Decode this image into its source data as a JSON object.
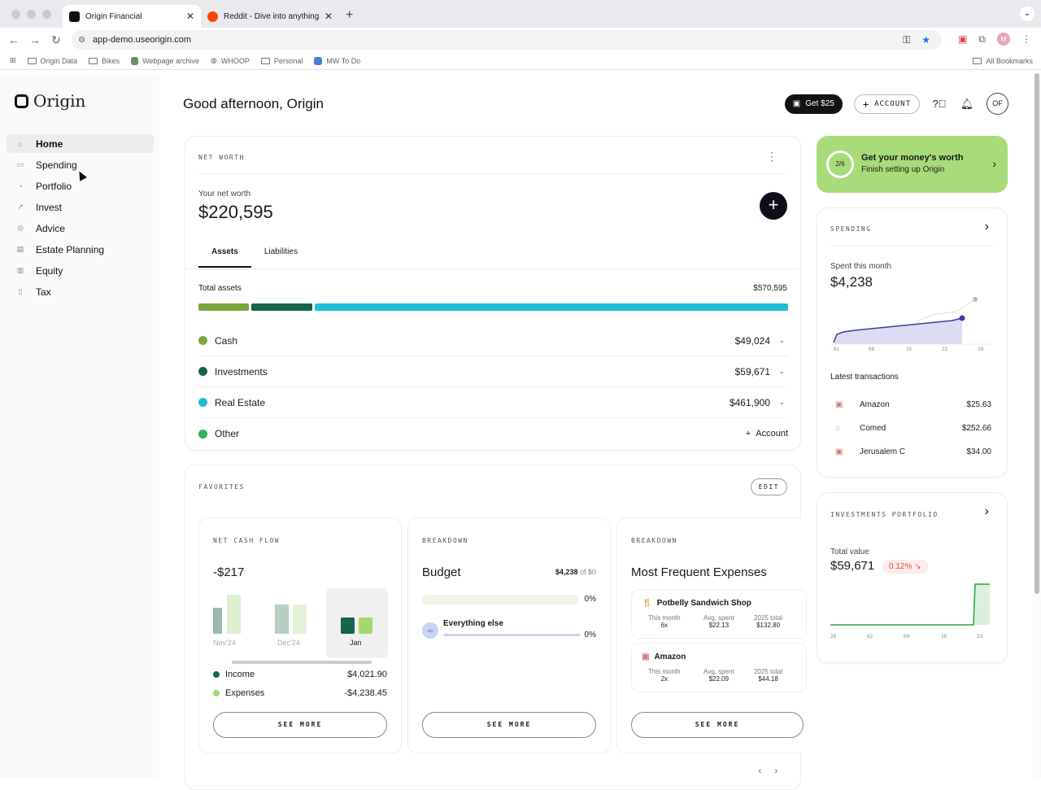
{
  "browser": {
    "tabs": [
      {
        "title": "Origin Financial"
      },
      {
        "title": "Reddit - Dive into anything"
      }
    ],
    "url": "app-demo.useorigin.com",
    "bookmarks": [
      "Origin Data",
      "Bikes",
      "Webpage archive",
      "WHOOP",
      "Personal",
      "MW To Do"
    ],
    "all_bookmarks": "All Bookmarks",
    "profile_initial": "M"
  },
  "app": {
    "logo": "Origin",
    "nav": [
      {
        "label": "Home",
        "icon": "home-icon"
      },
      {
        "label": "Spending",
        "icon": "card-icon"
      },
      {
        "label": "Portfolio",
        "icon": "pie-icon"
      },
      {
        "label": "Invest",
        "icon": "trend-icon"
      },
      {
        "label": "Advice",
        "icon": "target-icon"
      },
      {
        "label": "Estate Planning",
        "icon": "building-icon"
      },
      {
        "label": "Equity",
        "icon": "bars-icon"
      },
      {
        "label": "Tax",
        "icon": "doc-icon"
      }
    ],
    "greeting": "Good afternoon, Origin",
    "get_btn": "Get $25",
    "account_btn": "ACCOUNT",
    "avatar": "OF"
  },
  "net_worth": {
    "label": "NET WORTH",
    "subtitle": "Your net worth",
    "value": "$220,595",
    "tabs": [
      "Assets",
      "Liabilities"
    ],
    "total_label": "Total assets",
    "total_value": "$570,595",
    "rows": [
      {
        "name": "Cash",
        "value": "$49,024",
        "color": "#7aa83c"
      },
      {
        "name": "Investments",
        "value": "$59,671",
        "color": "#13654e"
      },
      {
        "name": "Real Estate",
        "value": "$461,900",
        "color": "#1fbfd1"
      },
      {
        "name": "Other",
        "value": "",
        "color": "#2cb25a",
        "action": "Account"
      }
    ]
  },
  "favorites": {
    "label": "FAVORITES",
    "edit": "EDIT",
    "cash_flow": {
      "label": "NET CASH FLOW",
      "value": "-$217",
      "months": [
        "Nov'24",
        "Dec'24",
        "Jan"
      ],
      "income_label": "Income",
      "income": "$4,021.90",
      "expenses_label": "Expenses",
      "expenses": "-$4,238.45",
      "see_more": "SEE MORE"
    },
    "budget": {
      "label": "BREAKDOWN",
      "title": "Budget",
      "spent": "$4,238",
      "of": "of $0",
      "pct1": "0%",
      "else_label": "Everything else",
      "pct2": "0%",
      "see_more": "SEE MORE"
    },
    "frequent": {
      "label": "BREAKDOWN",
      "title": "Most Frequent Expenses",
      "items": [
        {
          "name": "Potbelly Sandwich Shop",
          "this_month_label": "This month",
          "this_month": "6x",
          "avg_label": "Avg. spent",
          "avg": "$22.13",
          "total_label": "2025 total",
          "total": "$132.80"
        },
        {
          "name": "Amazon",
          "this_month_label": "This month",
          "this_month": "2x",
          "avg_label": "Avg. spent",
          "avg": "$22.09",
          "total_label": "2025 total",
          "total": "$44.18"
        }
      ],
      "see_more": "SEE MORE"
    }
  },
  "promo": {
    "progress": "2/6",
    "title": "Get your money's worth",
    "subtitle": "Finish setting up Origin"
  },
  "spending": {
    "label": "SPENDING",
    "subtitle": "Spent this month",
    "value": "$4,238",
    "axis": [
      "01",
      "08",
      "15",
      "22",
      "29"
    ],
    "latest_label": "Latest transactions",
    "transactions": [
      {
        "name": "Amazon",
        "amount": "$25.63"
      },
      {
        "name": "Comed",
        "amount": "$252.66"
      },
      {
        "name": "Jerusalem C",
        "amount": "$34.00"
      }
    ]
  },
  "investments": {
    "label": "INVESTMENTS PORTFOLIO",
    "subtitle": "Total value",
    "value": "$59,671",
    "change": "0.12% ↘",
    "axis": [
      "26",
      "02",
      "09",
      "16",
      "23"
    ]
  },
  "colors": {
    "accent_green": "#a8dc7a",
    "dark": "#121212",
    "teal": "#1fbfd1"
  }
}
